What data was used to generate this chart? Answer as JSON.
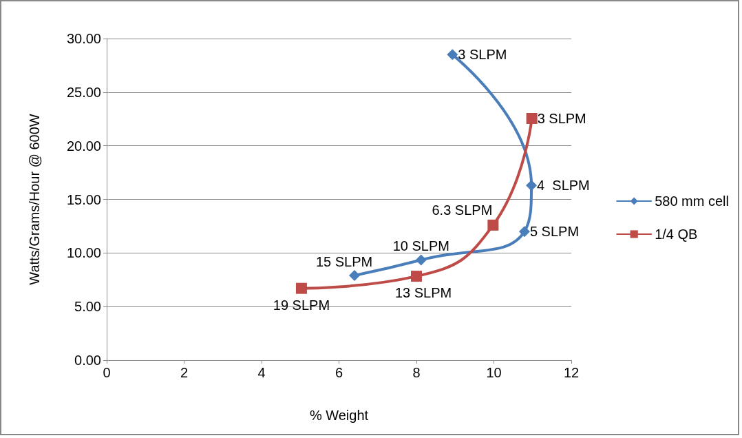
{
  "chart_data": {
    "type": "line",
    "xlabel": "% Weight",
    "ylabel": "Watts/Grams/Hour @ 600W",
    "xlim": [
      0,
      12
    ],
    "xticks": [
      0,
      2,
      4,
      6,
      8,
      10,
      12
    ],
    "ylim": [
      0,
      30
    ],
    "yticks": [
      {
        "value": 0,
        "label": "0.00"
      },
      {
        "value": 5,
        "label": "5.00"
      },
      {
        "value": 10,
        "label": "10.00"
      },
      {
        "value": 15,
        "label": "15.00"
      },
      {
        "value": 20,
        "label": "20.00"
      },
      {
        "value": 25,
        "label": "25.00"
      },
      {
        "value": 30,
        "label": "30.00"
      }
    ],
    "grid": "y",
    "legend": "right",
    "line_style": "solid",
    "annotations": [
      {
        "text": "3 SLPM",
        "x": 8.93,
        "y": 28.5
      },
      {
        "text": "4  SLPM",
        "x": 10.97,
        "y": 16.3
      },
      {
        "text": "5 SLPM",
        "x": 10.79,
        "y": 12.0
      },
      {
        "text": "10 SLPM",
        "x": 8.12,
        "y": 9.35
      },
      {
        "text": "15 SLPM",
        "x": 6.4,
        "y": 7.9
      },
      {
        "text": "19 SLPM",
        "x": 5.03,
        "y": 6.7
      },
      {
        "text": "13 SLPM",
        "x": 8.0,
        "y": 7.83
      },
      {
        "text": "6.3 SLPM",
        "x": 9.98,
        "y": 12.6
      },
      {
        "text": "3 SLPM",
        "x": 10.98,
        "y": 22.55
      }
    ],
    "series": [
      {
        "name": "580 mm cell",
        "color": "#4a7ebb",
        "marker": "diamond",
        "x": [
          8.93,
          10.97,
          10.79,
          8.12,
          6.4
        ],
        "values": [
          28.5,
          16.3,
          12.0,
          9.35,
          7.9
        ]
      },
      {
        "name": "1/4 QB",
        "color": "#be4b48",
        "marker": "square",
        "x": [
          5.03,
          8.0,
          9.98,
          10.98
        ],
        "values": [
          6.7,
          7.83,
          12.6,
          22.55
        ]
      }
    ]
  }
}
